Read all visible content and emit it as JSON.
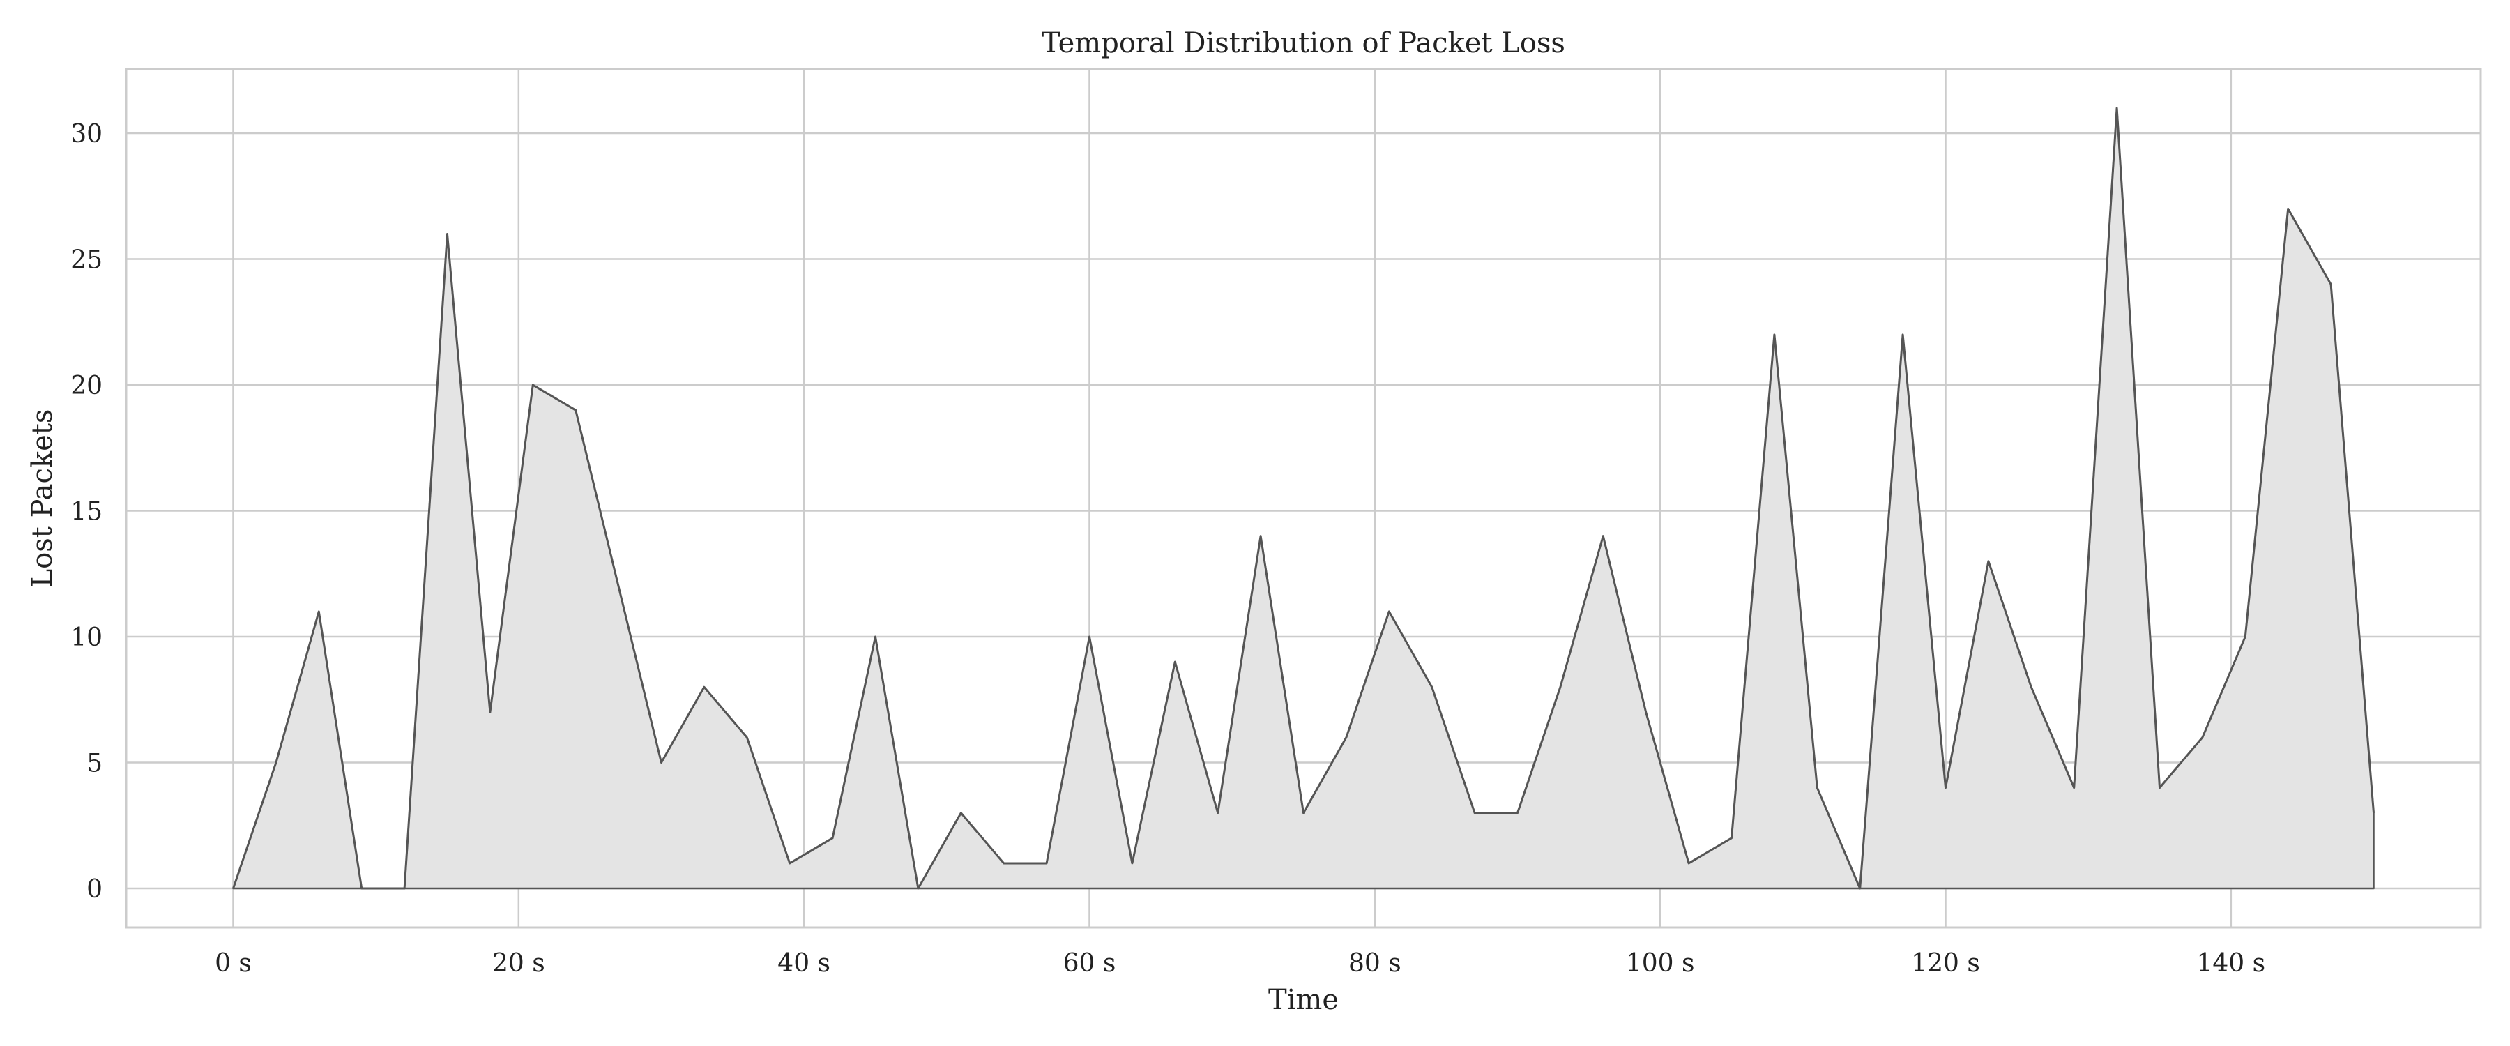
{
  "chart_data": {
    "type": "area",
    "title": "Temporal Distribution of Packet Loss",
    "xlabel": "Time",
    "ylabel": "Lost Packets",
    "xlim": [
      -7.5,
      157.5
    ],
    "ylim": [
      -1.55,
      32.55
    ],
    "grid": true,
    "legend": "none",
    "x_ticks": [
      0,
      20,
      40,
      60,
      80,
      100,
      120,
      140
    ],
    "x_tick_labels": [
      "0 s",
      "20 s",
      "40 s",
      "60 s",
      "80 s",
      "100 s",
      "120 s",
      "140 s"
    ],
    "y_ticks": [
      0,
      5,
      10,
      15,
      20,
      25,
      30
    ],
    "y_tick_labels": [
      "0",
      "5",
      "10",
      "15",
      "20",
      "25",
      "30"
    ],
    "x": [
      0,
      3,
      6,
      9,
      12,
      15,
      18,
      21,
      24,
      27,
      30,
      33,
      36,
      39,
      42,
      45,
      48,
      51,
      54,
      57,
      60,
      63,
      66,
      69,
      72,
      75,
      78,
      81,
      84,
      87,
      90,
      93,
      96,
      99,
      102,
      105,
      108,
      111,
      114,
      117,
      120,
      123,
      126,
      129,
      132,
      135,
      138,
      141,
      144,
      147,
      150
    ],
    "values": [
      0,
      5,
      11,
      0,
      0,
      26,
      7,
      20,
      19,
      12,
      5,
      8,
      6,
      1,
      2,
      10,
      0,
      3,
      1,
      1,
      10,
      1,
      9,
      3,
      14,
      3,
      6,
      11,
      8,
      3,
      3,
      8,
      14,
      7,
      1,
      2,
      22,
      4,
      0,
      22,
      4,
      13,
      8,
      4,
      31,
      4,
      6,
      10,
      27,
      24,
      3
    ],
    "colors": {
      "fill": "#e4e4e4",
      "line": "#555555",
      "grid": "#cccccc",
      "frame": "#cccccc"
    }
  }
}
